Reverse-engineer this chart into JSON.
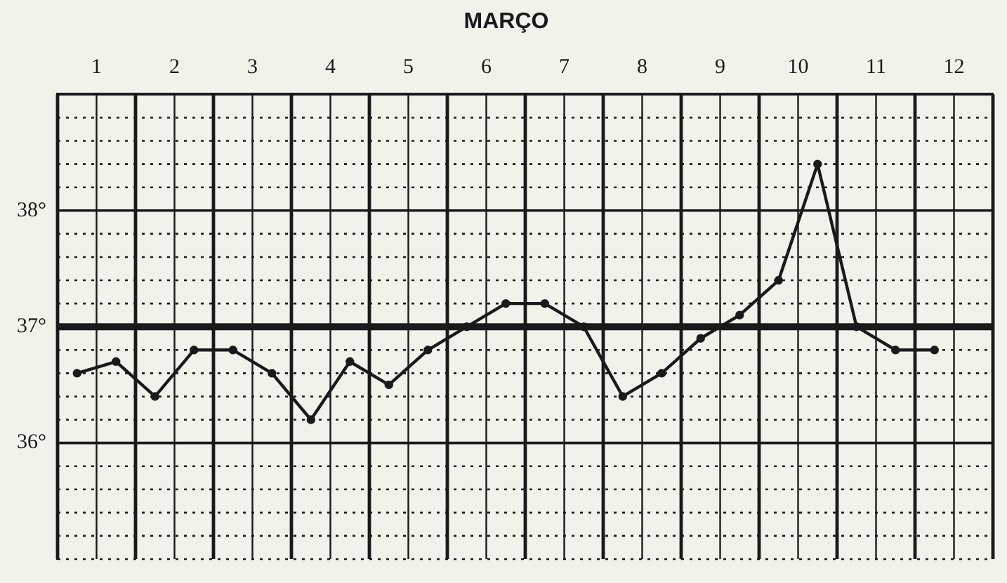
{
  "chart_data": {
    "type": "line",
    "title": "MARÇO",
    "x": [
      0.75,
      1.25,
      1.75,
      2.25,
      2.75,
      3.25,
      3.75,
      4.25,
      4.75,
      5.25,
      5.75,
      6.25,
      6.75,
      7.25,
      7.75,
      8.25,
      8.75,
      9.25,
      9.75,
      10.25,
      10.75,
      11.25,
      11.75
    ],
    "series": [
      {
        "color": "#1a1a1a",
        "values": [
          36.6,
          36.7,
          36.4,
          36.8,
          36.8,
          36.6,
          36.2,
          36.7,
          36.5,
          36.8,
          37.0,
          37.2,
          37.2,
          37.0,
          36.4,
          36.6,
          36.9,
          37.1,
          37.4,
          38.4,
          37.0,
          36.8,
          36.8
        ]
      }
    ],
    "xlim": [
      0.5,
      12.5
    ],
    "xticks": [
      {
        "value": 0.5,
        "label": null
      },
      1,
      {
        "value": 1.5,
        "label": null
      },
      2,
      {
        "value": 2.5,
        "label": null
      },
      3,
      {
        "value": 3.5,
        "label": null
      },
      4,
      {
        "value": 4.5,
        "label": null
      },
      5,
      {
        "value": 5.5,
        "label": null
      },
      6,
      {
        "value": 6.5,
        "label": null
      },
      7,
      {
        "value": 7.5,
        "label": null
      },
      8,
      {
        "value": 8.5,
        "label": null
      },
      9,
      {
        "value": 9.5,
        "label": null
      },
      10,
      {
        "value": 10.5,
        "label": null
      },
      11,
      {
        "value": 11.5,
        "label": null
      },
      12,
      {
        "value": 12.5,
        "label": null
      }
    ],
    "ylim": [
      35,
      39
    ],
    "yticks": [
      {
        "value": 35,
        "label": null
      },
      {
        "value": 35.2,
        "label": null
      },
      {
        "value": 35.4,
        "label": null
      },
      {
        "value": 35.6,
        "label": null
      },
      {
        "value": 35.8,
        "label": null
      },
      {
        "value": 36,
        "label": "36°"
      },
      {
        "value": 36.2,
        "label": null
      },
      {
        "value": 36.4,
        "label": null
      },
      {
        "value": 36.6,
        "label": null
      },
      {
        "value": 36.8,
        "label": null
      },
      {
        "value": 37,
        "label": "37°"
      },
      {
        "value": 37.2,
        "label": null
      },
      {
        "value": 37.4,
        "label": null
      },
      {
        "value": 37.6,
        "label": null
      },
      {
        "value": 37.8,
        "label": null
      },
      {
        "value": 38,
        "label": "38°"
      },
      {
        "value": 38.2,
        "label": null
      },
      {
        "value": 38.4,
        "label": null
      },
      {
        "value": 38.6,
        "label": null
      },
      {
        "value": 38.8,
        "label": null
      },
      {
        "value": 39,
        "label": null
      }
    ],
    "ref_lines": [
      {
        "axis": "y",
        "value": 37,
        "color": "#1a1a1a"
      }
    ],
    "grid": true,
    "legend": false,
    "marker": "circle",
    "line_style": "solid"
  }
}
